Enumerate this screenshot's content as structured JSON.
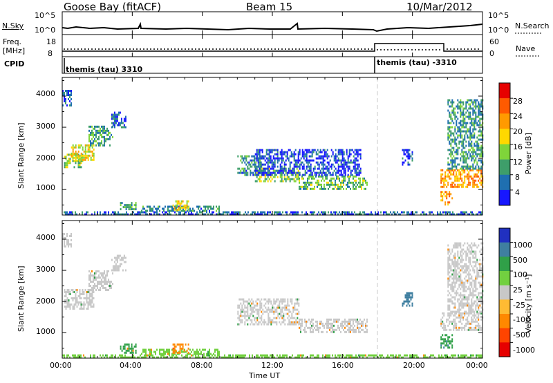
{
  "header": {
    "station": "Goose Bay (fitACF)",
    "beam": "Beam 15",
    "date": "10/Mar/2012"
  },
  "noise_panel": {
    "left_label": "N.Sky",
    "right_label": "N.Search",
    "left_ticks": [
      "10^5",
      "10^0"
    ],
    "right_ticks": [
      "10^5",
      "10^0"
    ]
  },
  "freq_panel": {
    "left_label_1": "Freq.",
    "left_label_2": "[MHz]",
    "right_label": "Nave",
    "left_ticks": [
      "18",
      "8"
    ],
    "right_ticks": [
      "60",
      "0"
    ]
  },
  "cpid_panel": {
    "label": "CPID",
    "segments": [
      "themis (tau) 3310",
      "themis (tau) -3310"
    ],
    "change_time_hours": 18
  },
  "power_panel": {
    "ylabel": "Slant Range [km]",
    "yticks": [
      "4000",
      "3000",
      "2000",
      "1000"
    ],
    "colorbar_label": "Power [dB]",
    "colorbar_ticks": [
      "28",
      "24",
      "20",
      "16",
      "12",
      "8",
      "4"
    ],
    "colorbar_colors": [
      "#e60000",
      "#ff5a00",
      "#ff9a00",
      "#ffd800",
      "#7fd43a",
      "#3e9e6a",
      "#1f6fb0",
      "#1717ff"
    ]
  },
  "velocity_panel": {
    "ylabel": "Slant Range [km]",
    "yticks": [
      "4000",
      "3000",
      "2000",
      "1000"
    ],
    "colorbar_label": "Velocity [m s⁻¹]",
    "colorbar_ticks": [
      "1000",
      "500",
      "100",
      "25",
      "-25",
      "-100",
      "-500",
      "-1000"
    ],
    "colorbar_colors": [
      "#2030c0",
      "#3f7fa0",
      "#30a048",
      "#72d040",
      "#c8c8c8",
      "#ffbb33",
      "#ff8800",
      "#ff4400",
      "#e60000"
    ]
  },
  "xaxis": {
    "ticks": [
      "00:00",
      "04:00",
      "08:00",
      "12:00",
      "16:00",
      "20:00",
      "00:00"
    ],
    "label": "Time UT"
  },
  "chart_data": [
    {
      "type": "heatmap",
      "title": "Power [dB]",
      "xlabel": "Time UT",
      "ylabel": "Slant Range [km]",
      "xlim": [
        0,
        24
      ],
      "ylim": [
        180,
        4600
      ],
      "clim": [
        0,
        32
      ],
      "grid": false,
      "regions": [
        {
          "t0": 0.0,
          "t1": 0.5,
          "r0": 3700,
          "r1": 4200,
          "v": 5
        },
        {
          "t0": 0.1,
          "t1": 1.2,
          "r0": 1750,
          "r1": 2150,
          "v": 14
        },
        {
          "t0": 0.5,
          "t1": 1.8,
          "r0": 1950,
          "r1": 2450,
          "v": 18
        },
        {
          "t0": 1.5,
          "t1": 2.9,
          "r0": 2450,
          "r1": 3050,
          "v": 10
        },
        {
          "t0": 2.8,
          "t1": 3.6,
          "r0": 3000,
          "r1": 3500,
          "v": 6
        },
        {
          "t0": 0.0,
          "t1": 24.0,
          "r0": 180,
          "r1": 300,
          "v": 6
        },
        {
          "t0": 3.3,
          "t1": 4.2,
          "r0": 350,
          "r1": 600,
          "v": 10
        },
        {
          "t0": 4.5,
          "t1": 9.0,
          "r0": 330,
          "r1": 480,
          "v": 8
        },
        {
          "t0": 6.3,
          "t1": 7.2,
          "r0": 350,
          "r1": 650,
          "v": 18
        },
        {
          "t0": 10.0,
          "t1": 11.5,
          "r0": 1500,
          "r1": 2100,
          "v": 8
        },
        {
          "t0": 11.0,
          "t1": 13.5,
          "r0": 1300,
          "r1": 1700,
          "v": 14
        },
        {
          "t0": 13.5,
          "t1": 17.4,
          "r0": 1050,
          "r1": 1450,
          "v": 12
        },
        {
          "t0": 11.0,
          "t1": 17.0,
          "r0": 1500,
          "r1": 2300,
          "v": 4
        },
        {
          "t0": 19.4,
          "t1": 20.0,
          "r0": 1800,
          "r1": 2300,
          "v": 5
        },
        {
          "t0": 21.6,
          "t1": 24.0,
          "r0": 1100,
          "r1": 1650,
          "v": 22
        },
        {
          "t0": 21.6,
          "t1": 22.3,
          "r0": 550,
          "r1": 950,
          "v": 22
        },
        {
          "t0": 22.0,
          "t1": 24.0,
          "r0": 1700,
          "r1": 3900,
          "v": 9
        }
      ]
    },
    {
      "type": "heatmap",
      "title": "Velocity [m s⁻¹]",
      "xlabel": "Time UT",
      "ylabel": "Slant Range [km]",
      "xlim": [
        0,
        24
      ],
      "ylim": [
        180,
        4600
      ],
      "clim": [
        -1000,
        1000
      ],
      "grid": false,
      "regions": [
        {
          "t0": 0.0,
          "t1": 0.5,
          "r0": 3800,
          "r1": 4200,
          "v": 0
        },
        {
          "t0": 0.1,
          "t1": 1.8,
          "r0": 1750,
          "r1": 2400,
          "v": 0
        },
        {
          "t0": 1.5,
          "t1": 2.9,
          "r0": 2400,
          "r1": 3000,
          "v": 0
        },
        {
          "t0": 2.8,
          "t1": 3.6,
          "r0": 3000,
          "r1": 3500,
          "v": 0
        },
        {
          "t0": 0.0,
          "t1": 24.0,
          "r0": 180,
          "r1": 300,
          "v": 80
        },
        {
          "t0": 3.3,
          "t1": 4.2,
          "r0": 350,
          "r1": 650,
          "v": 150
        },
        {
          "t0": 4.5,
          "t1": 9.0,
          "r0": 330,
          "r1": 480,
          "v": 60
        },
        {
          "t0": 6.3,
          "t1": 7.2,
          "r0": 350,
          "r1": 650,
          "v": -400
        },
        {
          "t0": 10.0,
          "t1": 13.5,
          "r0": 1300,
          "r1": 2100,
          "v": 0
        },
        {
          "t0": 13.5,
          "t1": 17.4,
          "r0": 1050,
          "r1": 1450,
          "v": 0
        },
        {
          "t0": 19.4,
          "t1": 20.0,
          "r0": 1900,
          "r1": 2300,
          "v": 700
        },
        {
          "t0": 21.6,
          "t1": 24.0,
          "r0": 1100,
          "r1": 1650,
          "v": 0
        },
        {
          "t0": 21.6,
          "t1": 22.3,
          "r0": 550,
          "r1": 950,
          "v": 200
        },
        {
          "t0": 22.0,
          "t1": 24.0,
          "r0": 1700,
          "r1": 3900,
          "v": 0
        }
      ]
    }
  ]
}
